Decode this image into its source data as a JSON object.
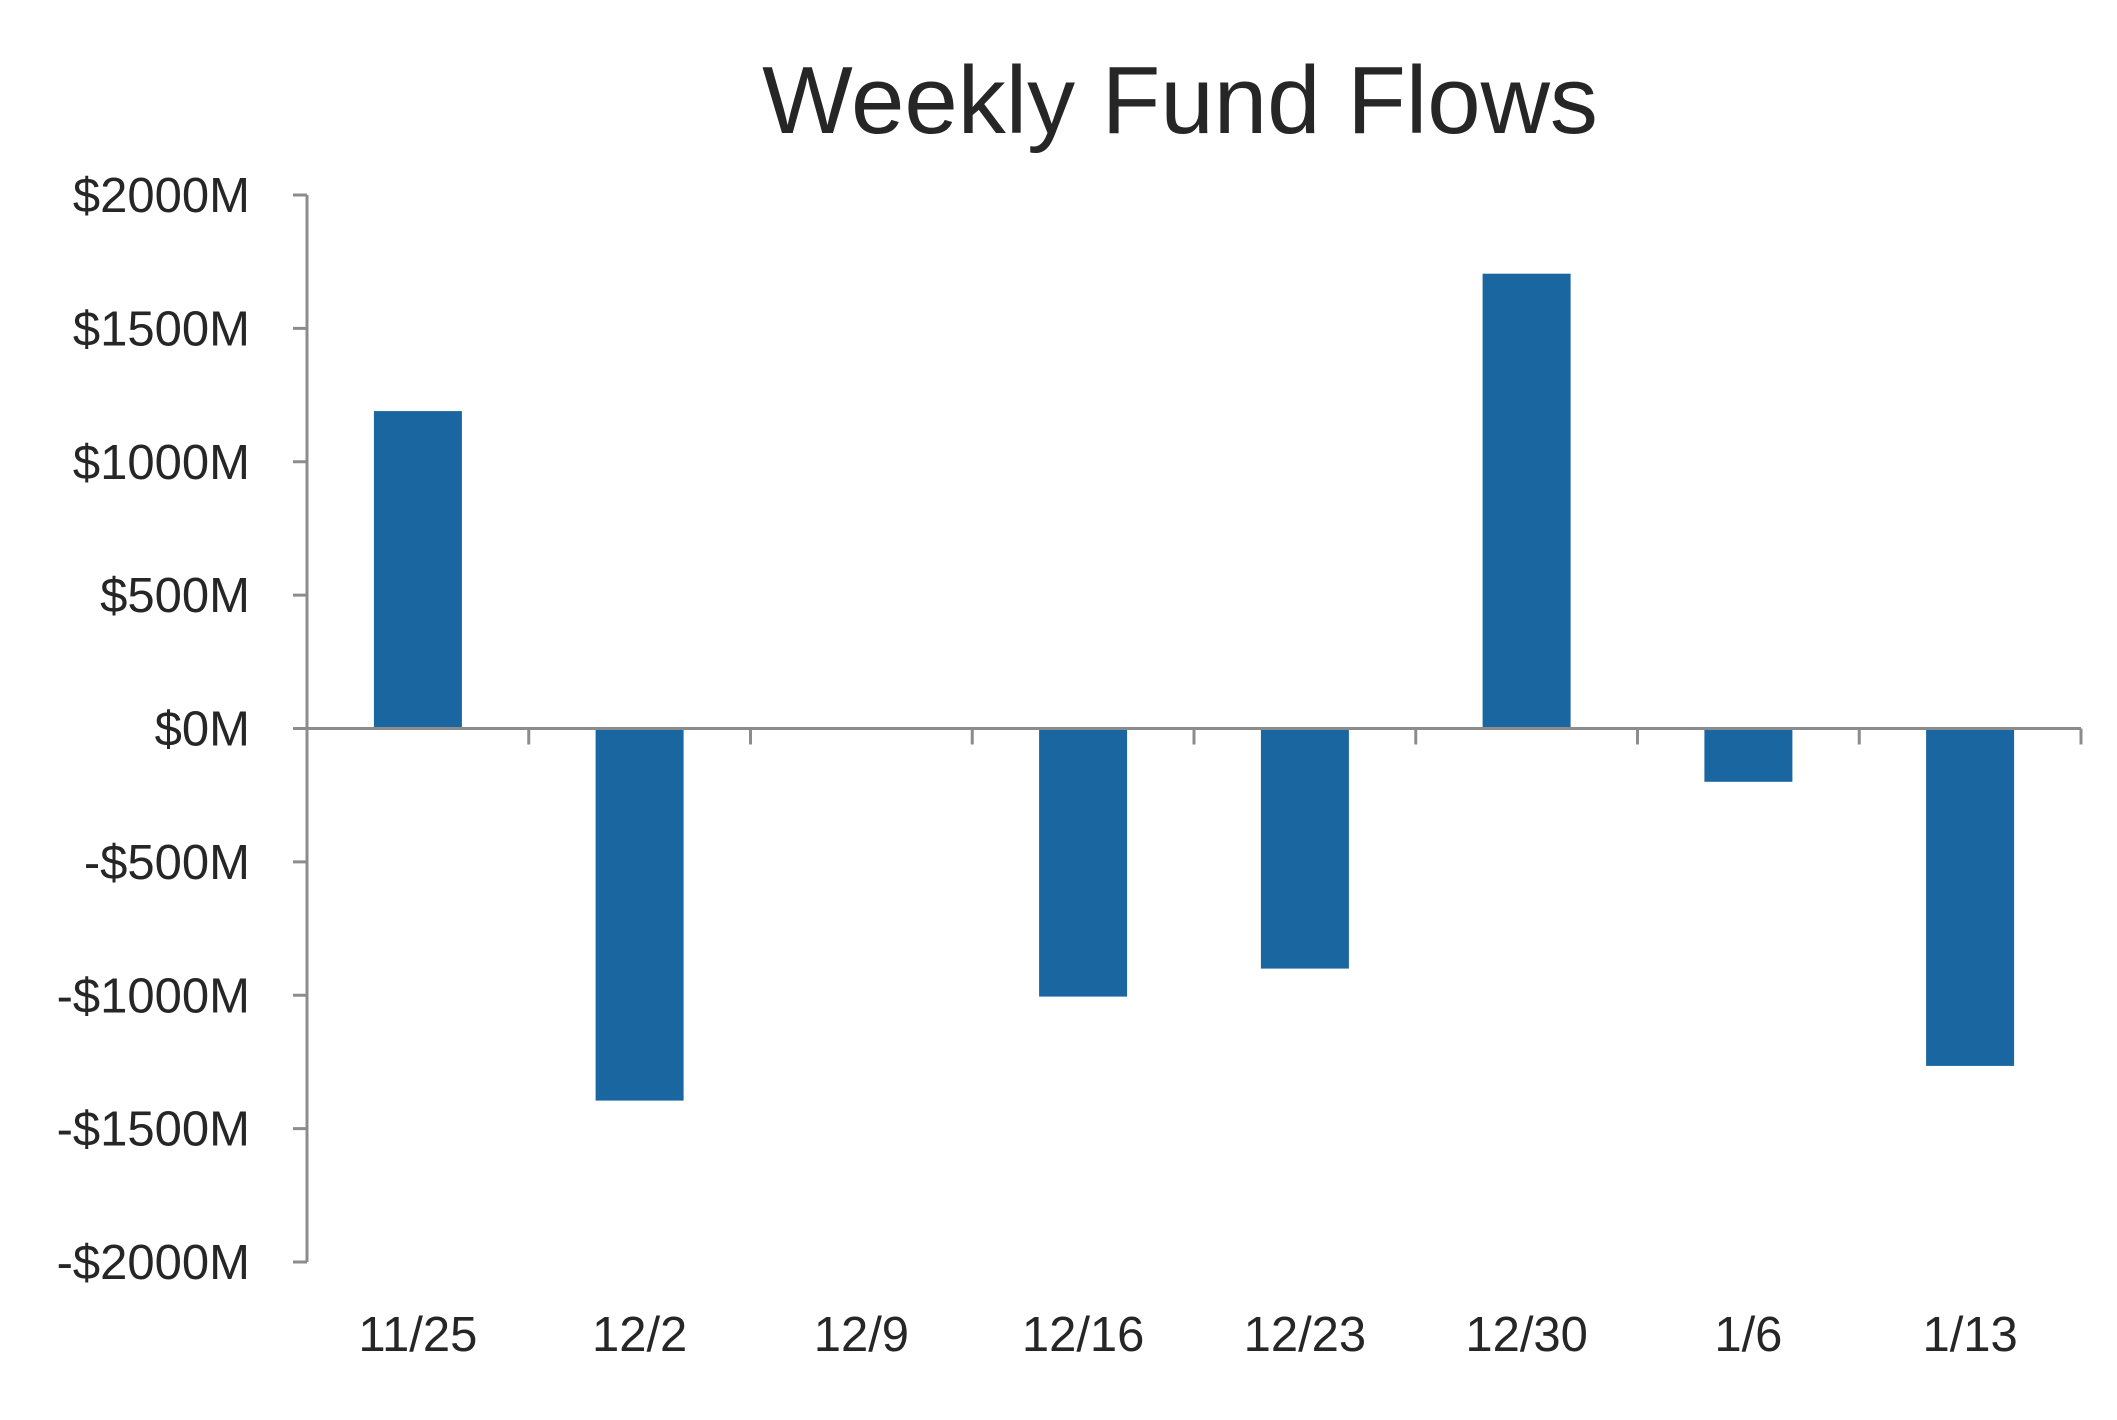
{
  "chart_data": {
    "type": "bar",
    "title": "Weekly Fund Flows",
    "xlabel": "",
    "ylabel": "",
    "categories": [
      "11/25",
      "12/2",
      "12/9",
      "12/16",
      "12/23",
      "12/30",
      "1/6",
      "1/13"
    ],
    "series": [
      {
        "values": [
          1190,
          -1395,
          0,
          -1005,
          -900,
          1705,
          -200,
          -1265
        ]
      }
    ],
    "ylim": [
      -2000,
      2000
    ],
    "yticks": [
      2000,
      1500,
      1000,
      500,
      0,
      -500,
      -1000,
      -1500,
      -2000
    ],
    "ytick_labels": [
      "$2000M",
      "$1500M",
      "$1000M",
      "$500M",
      "$0M",
      "-$500M",
      "-$1000M",
      "-$1500M",
      "-$2000M"
    ],
    "grid": false,
    "legend": "none",
    "colors": {
      "bar": "#1a66a0",
      "axis": "#8c8c8c",
      "text": "#262626"
    }
  }
}
